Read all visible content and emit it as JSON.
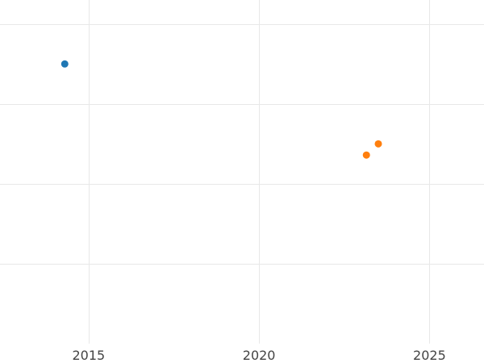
{
  "chart_data": {
    "type": "scatter",
    "title": "",
    "xlabel": "",
    "ylabel": "",
    "grid": true,
    "legend": "none",
    "xlim": [
      2012.4,
      2026.6
    ],
    "ylim": [
      0,
      4.3
    ],
    "x_ticks": [
      2015,
      2020,
      2025
    ],
    "x_tick_labels": [
      "2015",
      "2020",
      "2025"
    ],
    "y_gridlines": [
      1,
      2,
      3,
      4
    ],
    "series": [
      {
        "color": "#1f77b4",
        "x": [
          2014.3
        ],
        "y": [
          3.5
        ]
      },
      {
        "color": "#ff7f0e",
        "x": [
          2023.15,
          2023.5
        ],
        "y": [
          2.36,
          2.5
        ]
      }
    ]
  }
}
